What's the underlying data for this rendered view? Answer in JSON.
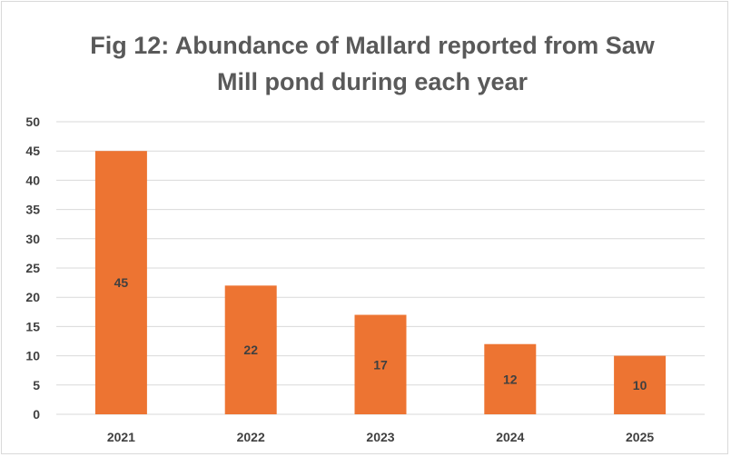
{
  "chart_data": {
    "type": "bar",
    "title_lines": [
      "Fig 12: Abundance of Mallard reported from Saw",
      "Mill pond during each year"
    ],
    "xlabel": "",
    "ylabel": "",
    "categories": [
      "2021",
      "2022",
      "2023",
      "2024",
      "2025"
    ],
    "values": [
      45,
      22,
      17,
      12,
      10
    ],
    "data_labels": [
      "45",
      "22",
      "17",
      "12",
      "10"
    ],
    "yticks": [
      "0",
      "5",
      "10",
      "15",
      "20",
      "25",
      "30",
      "35",
      "40",
      "45",
      "50"
    ],
    "ylim": [
      0,
      50
    ],
    "grid": true,
    "legend": "none",
    "bar_color": "#ED7432",
    "grid_color": "#d9d9d9"
  }
}
